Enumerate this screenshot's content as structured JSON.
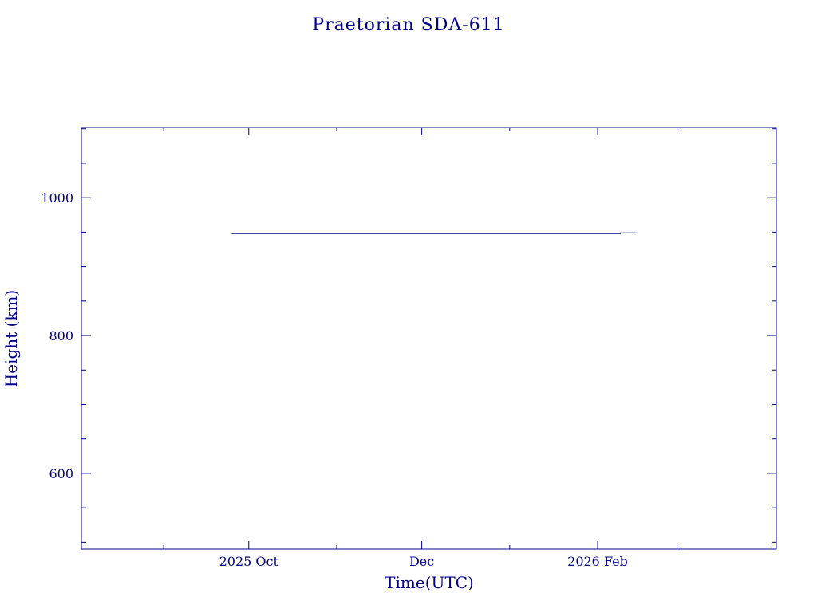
{
  "chart_data": {
    "type": "line",
    "title": "Praetorian SDA-611",
    "xlabel": "Time(UTC)",
    "ylabel": "Height (km)",
    "xlim": [
      "2025-08-03",
      "2026-04-05"
    ],
    "ylim": [
      490,
      1102
    ],
    "x_tick_labels": [
      {
        "date": "2025-10-01",
        "label": "2025 Oct"
      },
      {
        "date": "2025-12-01",
        "label": "Dec"
      },
      {
        "date": "2026-02-01",
        "label": "2026 Feb"
      }
    ],
    "x_minor_ticks": [
      "2025-09-01",
      "2025-11-01",
      "2026-01-01",
      "2026-03-01"
    ],
    "y_major_ticks": [
      600,
      800,
      1000
    ],
    "y_minor_step": 50,
    "grid": false,
    "color": "#00008b",
    "series": [
      {
        "x": [
          "2025-09-25",
          "2026-02-09",
          "2026-02-09",
          "2026-02-15"
        ],
        "y": [
          948,
          948,
          949,
          949
        ]
      }
    ]
  }
}
